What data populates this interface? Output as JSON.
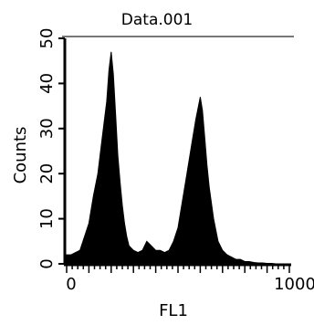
{
  "chart_data": {
    "type": "area",
    "title": "Data.001",
    "xlabel": "FL1",
    "ylabel": "Counts",
    "xlim": [
      0,
      1000
    ],
    "ylim": [
      0,
      50
    ],
    "x_ticks": [
      0,
      1000
    ],
    "x_tick_labels": [
      "0",
      "1000"
    ],
    "y_ticks": [
      0,
      10,
      20,
      30,
      40,
      50
    ],
    "y_tick_labels": [
      "0",
      "10",
      "20",
      "30",
      "40",
      "50"
    ],
    "grid": false,
    "legend": "none",
    "fill_color": "#000000",
    "series": [
      {
        "x": [
          0,
          20,
          40,
          60,
          80,
          100,
          120,
          140,
          160,
          180,
          190,
          200,
          210,
          220,
          230,
          240,
          250,
          260,
          270,
          280,
          300,
          320,
          340,
          360,
          380,
          400,
          420,
          440,
          460,
          480,
          500,
          520,
          540,
          560,
          580,
          600,
          610,
          620,
          630,
          640,
          660,
          680,
          700,
          720,
          740,
          760,
          780,
          800,
          820,
          840,
          860,
          880,
          900,
          920,
          940,
          960,
          980,
          1000
        ],
        "values": [
          2,
          2,
          2.5,
          3,
          6,
          9,
          15,
          20,
          28,
          36,
          43,
          47,
          42,
          33,
          24,
          18,
          13,
          9,
          6,
          4,
          3,
          2.5,
          3,
          5,
          4,
          3,
          3,
          2.5,
          3,
          5,
          8,
          14,
          20,
          26,
          32,
          37,
          34,
          28,
          22,
          17,
          10,
          5,
          3,
          2,
          1.5,
          1,
          1,
          0.5,
          0.5,
          0.3,
          0.2,
          0.2,
          0.1,
          0.1,
          0,
          0,
          0,
          0
        ]
      }
    ]
  }
}
